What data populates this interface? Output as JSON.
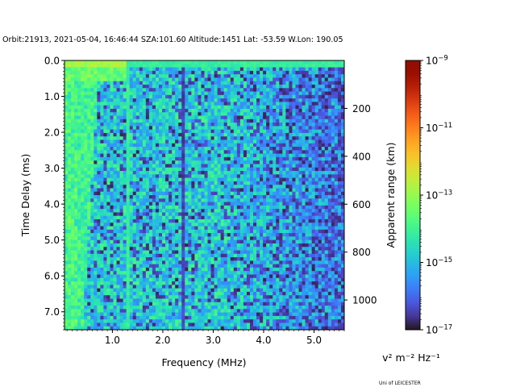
{
  "chart_data": {
    "type": "heatmap",
    "header": "Orbit:21913, 2021-05-04, 16:46:44 SZA:101.60 Altitude:1451 Lat: -53.59 W.Lon: 190.05",
    "xlabel": "Frequency (MHz)",
    "ylabel": "Time Delay (ms)",
    "y2label": "Apparent range (km)",
    "xlim": [
      0.05,
      5.6
    ],
    "ylim": [
      7.5,
      0.0
    ],
    "xticks": [
      1.0,
      2.0,
      3.0,
      4.0,
      5.0
    ],
    "xtick_labels": [
      "1.0",
      "2.0",
      "3.0",
      "4.0",
      "5.0"
    ],
    "yticks": [
      0.0,
      1.0,
      2.0,
      3.0,
      4.0,
      5.0,
      6.0,
      7.0
    ],
    "ytick_labels": [
      "0.0",
      "1.0",
      "2.0",
      "3.0",
      "4.0",
      "5.0",
      "6.0",
      "7.0"
    ],
    "y2ticks": [
      200,
      400,
      600,
      800,
      1000
    ],
    "y2tick_labels": [
      "200",
      "400",
      "600",
      "800",
      "1000"
    ],
    "y2_km_per_ms": 149.9,
    "colorbar": {
      "scale": "log",
      "range": [
        1e-17,
        1e-09
      ],
      "tick_exponents": [
        -17,
        -15,
        -13,
        -11,
        -9
      ],
      "tick_labels": [
        "10",
        "10",
        "10",
        "10",
        "10"
      ],
      "unit_label": "v² m⁻² Hz⁻¹",
      "colormap": "turbo"
    },
    "features": {
      "grid": {
        "n_freq": 86,
        "n_delay": 78
      },
      "top_row_delay_ms": 0.1,
      "plasma_frequency_line_MHz": 1.3,
      "interference_line_MHz": 2.4,
      "low_freq_echo_trace_MHz": [
        0.1,
        0.75
      ]
    }
  },
  "credit": "Uni of LEICESTER"
}
